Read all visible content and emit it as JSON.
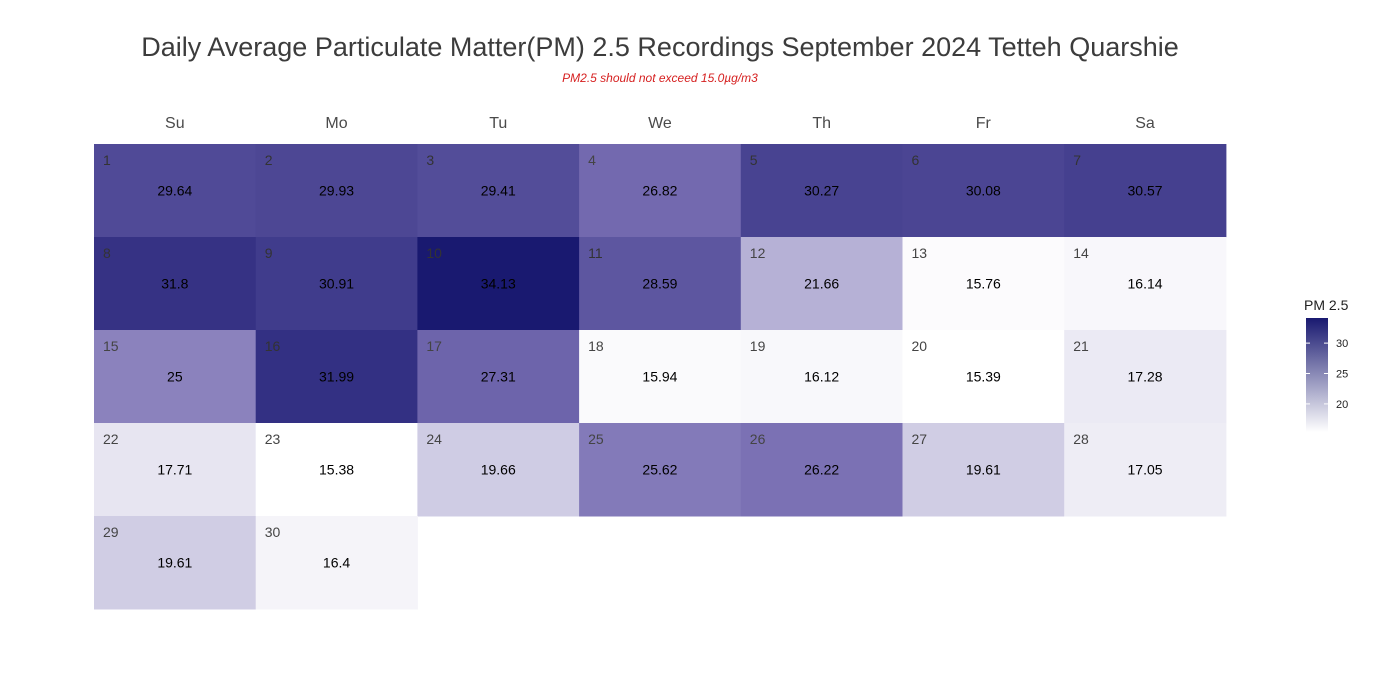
{
  "chart_data": {
    "type": "heatmap",
    "title": "Daily Average Particulate Matter(PM) 2.5 Recordings September 2024 Tetteh Quarshie",
    "subtitle": "PM2.5 should not exceed 15.0µg/m3",
    "weekdays": [
      "Su",
      "Mo",
      "Tu",
      "We",
      "Th",
      "Fr",
      "Sa"
    ],
    "first_weekday_index": 0,
    "days": [
      {
        "day": "1",
        "value": 29.64
      },
      {
        "day": "2",
        "value": 29.93
      },
      {
        "day": "3",
        "value": 29.41
      },
      {
        "day": "4",
        "value": 26.82
      },
      {
        "day": "5",
        "value": 30.27
      },
      {
        "day": "6",
        "value": 30.08
      },
      {
        "day": "7",
        "value": 30.57
      },
      {
        "day": "8",
        "value": 31.8
      },
      {
        "day": "9",
        "value": 30.91
      },
      {
        "day": "10",
        "value": 34.13
      },
      {
        "day": "11",
        "value": 28.59
      },
      {
        "day": "12",
        "value": 21.66
      },
      {
        "day": "13",
        "value": 15.76
      },
      {
        "day": "14",
        "value": 16.14
      },
      {
        "day": "15",
        "value": 25
      },
      {
        "day": "16",
        "value": 31.99
      },
      {
        "day": "17",
        "value": 27.31
      },
      {
        "day": "18",
        "value": 15.94
      },
      {
        "day": "19",
        "value": 16.12
      },
      {
        "day": "20",
        "value": 15.39
      },
      {
        "day": "21",
        "value": 17.28
      },
      {
        "day": "22",
        "value": 17.71
      },
      {
        "day": "23",
        "value": 15.38
      },
      {
        "day": "24",
        "value": 19.66
      },
      {
        "day": "25",
        "value": 25.62
      },
      {
        "day": "26",
        "value": 26.22
      },
      {
        "day": "27",
        "value": 19.61
      },
      {
        "day": "28",
        "value": 17.05
      },
      {
        "day": "29",
        "value": 19.61
      },
      {
        "day": "30",
        "value": 16.4
      }
    ],
    "legend": {
      "title": "PM 2.5",
      "ticks": [
        "30",
        "25",
        "20"
      ],
      "tick_values": [
        30,
        25,
        20
      ],
      "range": [
        15.38,
        34.13
      ],
      "low_color": "#ffffff",
      "high_color": "#191970",
      "placement": "right"
    }
  }
}
